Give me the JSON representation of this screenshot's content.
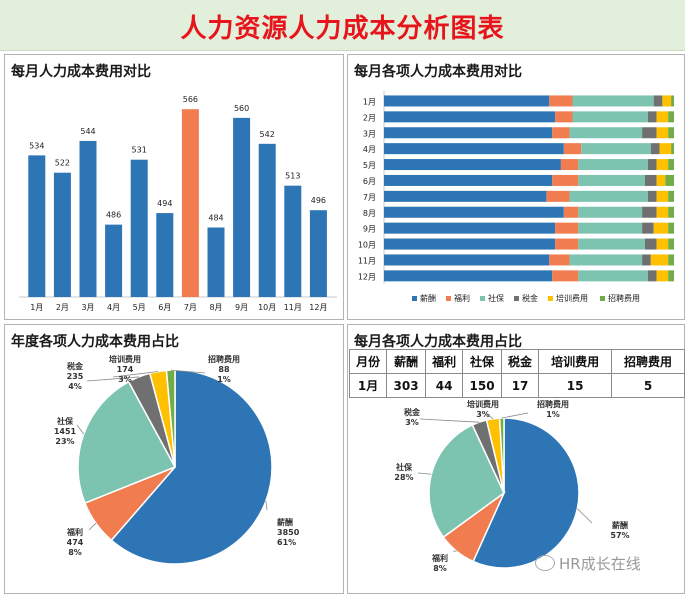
{
  "header": {
    "title": "人力资源人力成本分析图表"
  },
  "panels": {
    "monthly_total_title": "每月人力成本费用对比",
    "monthly_items_title": "每月各项人力成本费用对比",
    "annual_share_title": "年度各项人力成本费用占比",
    "monthly_share_title": "每月各项人力成本费用占比"
  },
  "colors": {
    "salary": "#2e75b6",
    "welfare": "#f07c4f",
    "social": "#7cc4b0",
    "tax": "#707070",
    "training": "#ffc000",
    "recruit": "#70ad47",
    "highlight": "#f07c4f"
  },
  "chart_data": [
    {
      "type": "bar",
      "title": "每月人力成本费用对比",
      "categories": [
        "1月",
        "2月",
        "3月",
        "4月",
        "5月",
        "6月",
        "7月",
        "8月",
        "9月",
        "10月",
        "11月",
        "12月"
      ],
      "values": [
        534,
        522,
        544,
        486,
        531,
        494,
        566,
        484,
        560,
        542,
        513,
        496
      ],
      "highlight_index": 6,
      "ylim": [
        440,
        580
      ]
    },
    {
      "type": "bar",
      "stacked": "percent",
      "orientation": "horizontal",
      "title": "每月各项人力成本费用对比",
      "categories": [
        "1月",
        "2月",
        "3月",
        "4月",
        "5月",
        "6月",
        "7月",
        "8月",
        "9月",
        "10月",
        "11月",
        "12月"
      ],
      "series": [
        {
          "name": "薪酬",
          "values": [
            57,
            59,
            58,
            62,
            61,
            58,
            56,
            62,
            59,
            59,
            57,
            58
          ]
        },
        {
          "name": "福利",
          "values": [
            8,
            6,
            6,
            6,
            6,
            9,
            8,
            5,
            8,
            8,
            7,
            9
          ]
        },
        {
          "name": "社保",
          "values": [
            28,
            26,
            25,
            24,
            24,
            23,
            27,
            22,
            22,
            23,
            25,
            24
          ]
        },
        {
          "name": "税金",
          "values": [
            3,
            3,
            5,
            3,
            3,
            4,
            3,
            5,
            4,
            4,
            3,
            3
          ]
        },
        {
          "name": "培训费用",
          "values": [
            3,
            4,
            4,
            4,
            4,
            3,
            4,
            4,
            5,
            4,
            6,
            4
          ]
        },
        {
          "name": "招聘费用",
          "values": [
            1,
            2,
            2,
            1,
            2,
            3,
            2,
            2,
            2,
            2,
            2,
            2
          ]
        }
      ],
      "legend": "bottom"
    },
    {
      "type": "pie",
      "title": "年度各项人力成本费用占比",
      "labels": [
        "薪酬",
        "福利",
        "社保",
        "税金",
        "培训费用",
        "招聘费用"
      ],
      "values": [
        3850,
        474,
        1451,
        235,
        174,
        88
      ],
      "percents": [
        "61%",
        "8%",
        "23%",
        "4%",
        "3%",
        "1%"
      ]
    },
    {
      "type": "pie",
      "title": "每月各项人力成本费用占比",
      "table": {
        "headers": [
          "月份",
          "薪酬",
          "福利",
          "社保",
          "税金",
          "培训费用",
          "招聘费用"
        ],
        "row": [
          "1月",
          "303",
          "44",
          "150",
          "17",
          "15",
          "5"
        ]
      },
      "labels": [
        "薪酬",
        "福利",
        "社保",
        "税金",
        "培训费用",
        "招聘费用"
      ],
      "values": [
        303,
        44,
        150,
        17,
        15,
        5
      ],
      "percents": [
        "57%",
        "8%",
        "28%",
        "3%",
        "3%",
        "1%"
      ]
    }
  ],
  "watermark": "HR成长在线"
}
